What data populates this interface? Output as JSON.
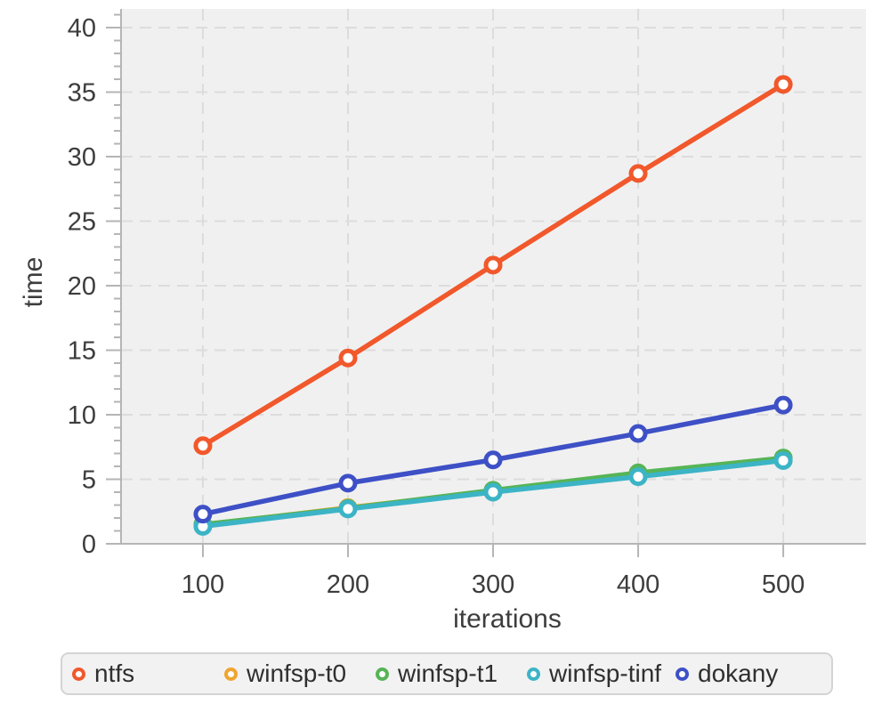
{
  "colors": {
    "page_bg": "#ffffff",
    "plot_bg": "#f0f0f0",
    "grid": "#dcdcdc",
    "axis": "#b5b5b5",
    "tick_text": "#3d3d3d",
    "legend_bg": "#f2f2f2",
    "legend_border": "#d4d4d4"
  },
  "chart_data": {
    "type": "line",
    "title": "",
    "xlabel": "iterations",
    "ylabel": "time",
    "x": [
      100,
      200,
      300,
      400,
      500
    ],
    "series": [
      {
        "name": "ntfs",
        "color": "#f1582b",
        "values": [
          7.6,
          14.4,
          21.6,
          28.7,
          35.6
        ]
      },
      {
        "name": "winfsp-t0",
        "color": "#f0a52f",
        "values": [
          1.45,
          2.8,
          4.05,
          5.3,
          6.5
        ]
      },
      {
        "name": "winfsp-t1",
        "color": "#56b456",
        "values": [
          1.5,
          2.75,
          4.15,
          5.5,
          6.65
        ]
      },
      {
        "name": "winfsp-tinf",
        "color": "#3cb4c6",
        "values": [
          1.35,
          2.7,
          4.0,
          5.2,
          6.45
        ]
      },
      {
        "name": "dokany",
        "color": "#3e50c6",
        "values": [
          2.3,
          4.7,
          6.5,
          8.55,
          10.75
        ]
      }
    ],
    "x_ticks": [
      100,
      200,
      300,
      400,
      500
    ],
    "y_ticks": [
      0,
      5,
      10,
      15,
      20,
      25,
      30,
      35,
      40
    ],
    "xlim": [
      43.6,
      557
    ],
    "ylim": [
      0,
      41.45
    ],
    "y_minor_step": 1,
    "grid": "dashed",
    "marker": "open-circle",
    "legend_position": "bottom"
  }
}
